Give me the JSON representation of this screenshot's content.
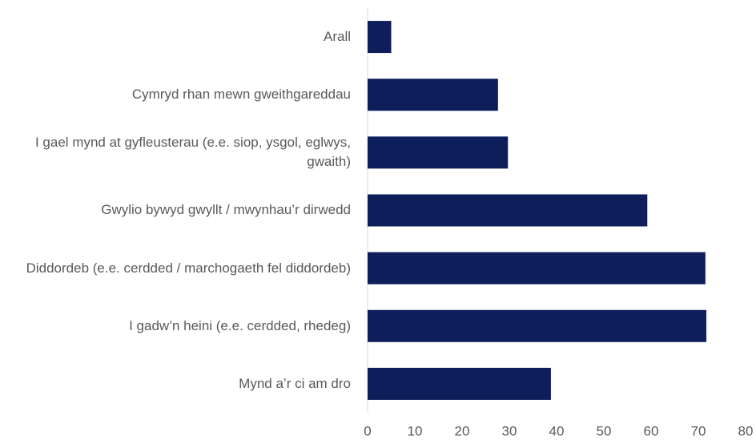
{
  "chart_data": {
    "type": "barh",
    "categories": [
      "Arall",
      "Cymryd rhan mewn gweithgareddau",
      "I gael mynd at gyfleusterau (e.e. siop, ysgol, eglwys, gwaith)",
      "Gwylio bywyd gwyllt / mwynhau’r dirwedd",
      "Diddordeb (e.e. cerdded / marchogaeth fel diddordeb)",
      "I gadw’n heini (e.e. cerdded, rhedeg)",
      "Mynd a’r ci am dro"
    ],
    "values": [
      5,
      27.6,
      29.7,
      59.2,
      71.5,
      71.7,
      38.8
    ],
    "color": "#0e1e5b",
    "xlim": [
      0,
      80
    ],
    "xticks": [
      0,
      10,
      20,
      30,
      40,
      50,
      60,
      70,
      80
    ],
    "grid": false
  }
}
